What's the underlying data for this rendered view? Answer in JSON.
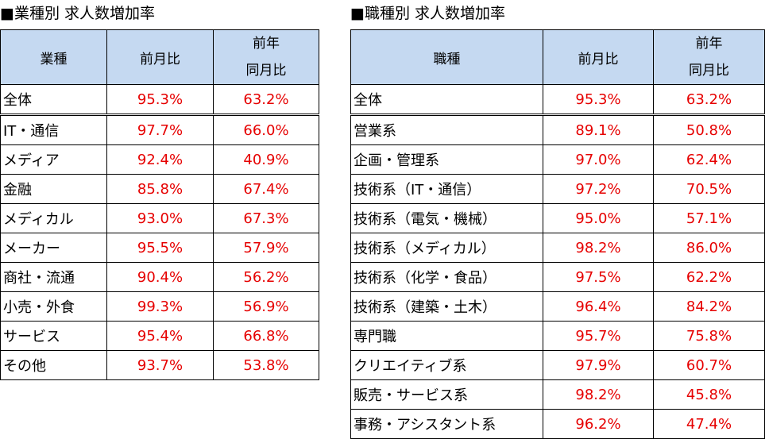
{
  "industry_table": {
    "title": "■業種別 求人数増加率",
    "headers": {
      "category": "業種",
      "mom": "前月比",
      "yoy_line1": "前年",
      "yoy_line2": "同月比"
    },
    "rows": [
      {
        "label": "全体",
        "mom": "95.3%",
        "yoy": "63.2%"
      },
      {
        "label": "IT・通信",
        "mom": "97.7%",
        "yoy": "66.0%"
      },
      {
        "label": "メディア",
        "mom": "92.4%",
        "yoy": "40.9%"
      },
      {
        "label": "金融",
        "mom": "85.8%",
        "yoy": "67.4%"
      },
      {
        "label": "メディカル",
        "mom": "93.0%",
        "yoy": "67.3%"
      },
      {
        "label": "メーカー",
        "mom": "95.5%",
        "yoy": "57.9%"
      },
      {
        "label": "商社・流通",
        "mom": "90.4%",
        "yoy": "56.2%"
      },
      {
        "label": "小売・外食",
        "mom": "99.3%",
        "yoy": "56.9%"
      },
      {
        "label": "サービス",
        "mom": "95.4%",
        "yoy": "66.8%"
      },
      {
        "label": "その他",
        "mom": "93.7%",
        "yoy": "53.8%"
      }
    ]
  },
  "occupation_table": {
    "title": "■職種別 求人数増加率",
    "headers": {
      "category": "職種",
      "mom": "前月比",
      "yoy_line1": "前年",
      "yoy_line2": "同月比"
    },
    "rows": [
      {
        "label": "全体",
        "mom": "95.3%",
        "yoy": "63.2%"
      },
      {
        "label": "営業系",
        "mom": "89.1%",
        "yoy": "50.8%"
      },
      {
        "label": "企画・管理系",
        "mom": "97.0%",
        "yoy": "62.4%"
      },
      {
        "label": "技術系（IT・通信）",
        "mom": "97.2%",
        "yoy": "70.5%"
      },
      {
        "label": "技術系（電気・機械）",
        "mom": "95.0%",
        "yoy": "57.1%"
      },
      {
        "label": "技術系（メディカル）",
        "mom": "98.2%",
        "yoy": "86.0%"
      },
      {
        "label": "技術系（化学・食品）",
        "mom": "97.5%",
        "yoy": "62.2%"
      },
      {
        "label": "技術系（建築・土木）",
        "mom": "96.4%",
        "yoy": "84.2%"
      },
      {
        "label": "専門職",
        "mom": "95.7%",
        "yoy": "75.8%"
      },
      {
        "label": "クリエイティブ系",
        "mom": "97.9%",
        "yoy": "60.7%"
      },
      {
        "label": "販売・サービス系",
        "mom": "98.2%",
        "yoy": "45.8%"
      },
      {
        "label": "事務・アシスタント系",
        "mom": "96.2%",
        "yoy": "47.4%"
      }
    ]
  },
  "colors": {
    "header_bg": "#c5d9f1",
    "value_text": "#e60000"
  }
}
